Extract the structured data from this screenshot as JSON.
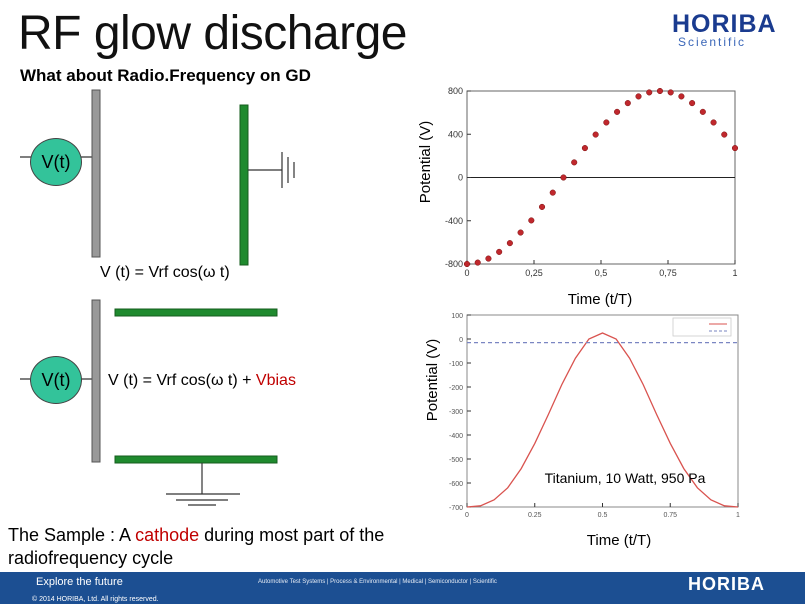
{
  "slide": {
    "title": "RF glow discharge",
    "subtitle": "What about Radio.Frequency on GD",
    "logo": {
      "word": "HORIBA",
      "sub": "Scientific"
    }
  },
  "diagram1": {
    "source_label": "V(t)",
    "equation": "V (t) = Vrf cos(ω t)"
  },
  "diagram2": {
    "source_label": "V(t)",
    "equation_prefix": "V (t) = Vrf cos(ω t) + ",
    "equation_highlight": "Vbias"
  },
  "sample_text": {
    "prefix": "The Sample : A ",
    "highlight": "cathode",
    "suffix": " during most part of the radiofrequency cycle"
  },
  "colors": {
    "accent_red": "#c00000",
    "electrode_green": "#1f8a2e",
    "source_fill": "#33c39a",
    "footer_blue": "#1c4f92"
  },
  "chart_data": [
    {
      "type": "scatter",
      "title": "",
      "xlabel": "Time (t/T)",
      "ylabel": "Potential (V)",
      "x_ticks": [
        "0",
        "0,25",
        "0,5",
        "0,75",
        "1"
      ],
      "y_ticks": [
        "800",
        "400",
        "0",
        "-400",
        "-800"
      ],
      "xlim": [
        0,
        1
      ],
      "ylim": [
        -800,
        800
      ],
      "grid": false,
      "series": [
        {
          "x": [
            0.0,
            0.04,
            0.08,
            0.12,
            0.16,
            0.2,
            0.24,
            0.28,
            0.32,
            0.36,
            0.4,
            0.44,
            0.48,
            0.52,
            0.56,
            0.6,
            0.64,
            0.68,
            0.72,
            0.76,
            0.8,
            0.84,
            0.88,
            0.92,
            0.96,
            1.0
          ],
          "y": [
            -800,
            -787,
            -750,
            -688,
            -607,
            -509,
            -397,
            -272,
            -140,
            0,
            140,
            272,
            397,
            509,
            607,
            688,
            750,
            787,
            800,
            787,
            750,
            688,
            607,
            509,
            397,
            272
          ],
          "color": "#c0282d"
        }
      ]
    },
    {
      "type": "line",
      "title": "",
      "xlabel": "Time (t/T)",
      "ylabel": "Potential (V)",
      "x_ticks": [
        "0",
        "0.25",
        "0.5",
        "0.75",
        "1"
      ],
      "y_ticks": [
        "100",
        "0",
        "-100",
        "-200",
        "-300",
        "-400",
        "-500",
        "-600",
        "-700"
      ],
      "xlim": [
        0,
        1
      ],
      "ylim": [
        -700,
        100
      ],
      "annotation": "Titanium, 10 Watt, 950 Pa",
      "series": [
        {
          "x": [
            0.0,
            0.05,
            0.1,
            0.15,
            0.2,
            0.25,
            0.3,
            0.35,
            0.4,
            0.45,
            0.5,
            0.55,
            0.6,
            0.65,
            0.7,
            0.75,
            0.8,
            0.85,
            0.9,
            0.95,
            1.0
          ],
          "y": [
            -700,
            -695,
            -670,
            -620,
            -540,
            -435,
            -315,
            -190,
            -80,
            0,
            25,
            0,
            -80,
            -190,
            -315,
            -435,
            -540,
            -620,
            -670,
            -695,
            -700
          ],
          "color": "#d9534f"
        },
        {
          "x": [
            0.0,
            1.0
          ],
          "y": [
            -15,
            -15
          ],
          "color": "#7a86c2",
          "dashed": true
        }
      ]
    }
  ],
  "footer": {
    "tagline": "Explore the future",
    "copyright": "© 2014 HORIBA, Ltd. All rights reserved.",
    "links": "Automotive Test Systems  |  Process & Environmental  |  Medical  |  Semiconductor  |  Scientific",
    "logo": "HORIBA"
  }
}
